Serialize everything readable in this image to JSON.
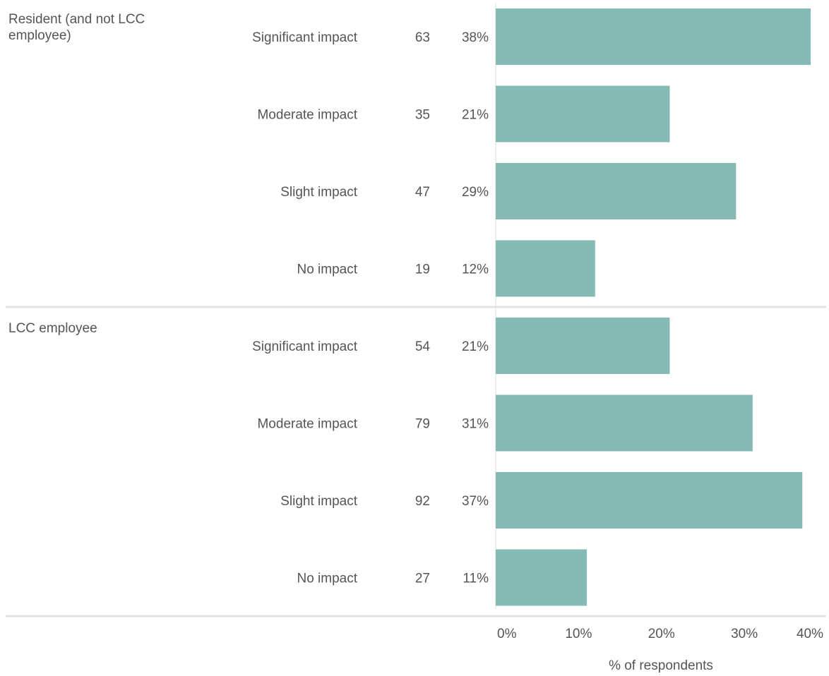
{
  "chart_data": {
    "type": "bar",
    "orientation": "horizontal",
    "xlabel": "% of respondents",
    "xlim": [
      0,
      40
    ],
    "x_ticks": [
      "0%",
      "10%",
      "20%",
      "30%",
      "40%"
    ],
    "grid": false,
    "bar_color": "#86bbb5",
    "groups": [
      {
        "label": "Resident (and not LCC employee)",
        "label_lines": [
          "Resident (and not LCC",
          "employee)"
        ],
        "rows": [
          {
            "category": "Significant impact",
            "count": "63",
            "percent_label": "38%",
            "value": 38
          },
          {
            "category": "Moderate impact",
            "count": "35",
            "percent_label": "21%",
            "value": 21
          },
          {
            "category": "Slight impact",
            "count": "47",
            "percent_label": "29%",
            "value": 29
          },
          {
            "category": "No impact",
            "count": "19",
            "percent_label": "12%",
            "value": 12
          }
        ]
      },
      {
        "label": "LCC employee",
        "label_lines": [
          "LCC employee"
        ],
        "rows": [
          {
            "category": "Significant impact",
            "count": "54",
            "percent_label": "21%",
            "value": 21
          },
          {
            "category": "Moderate impact",
            "count": "79",
            "percent_label": "31%",
            "value": 31
          },
          {
            "category": "Slight impact",
            "count": "92",
            "percent_label": "37%",
            "value": 37
          },
          {
            "category": "No impact",
            "count": "27",
            "percent_label": "11%",
            "value": 11
          }
        ]
      }
    ]
  }
}
